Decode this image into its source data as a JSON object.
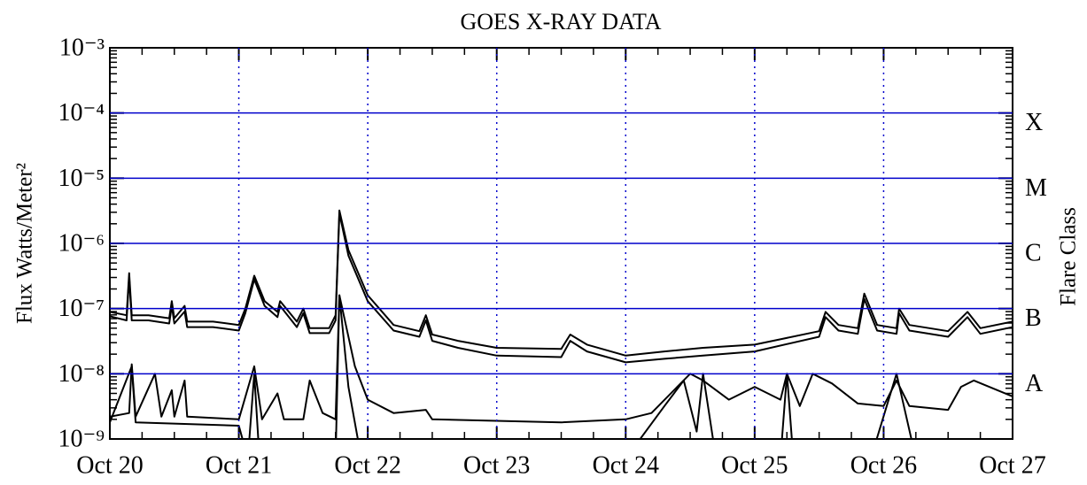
{
  "chart_data": {
    "type": "line",
    "title": "GOES X-RAY DATA",
    "ylabel": "Flux Watts/Meter²",
    "y2label": "Flare Class",
    "yscale": "log",
    "ylim": [
      1e-09,
      0.001
    ],
    "y2lim": [
      1e-09,
      0.001
    ],
    "yticks": [
      {
        "value": 1e-09,
        "label": "10⁻⁹"
      },
      {
        "value": 1e-08,
        "label": "10⁻⁸"
      },
      {
        "value": 1e-07,
        "label": "10⁻⁷"
      },
      {
        "value": 1e-06,
        "label": "10⁻⁶"
      },
      {
        "value": 1e-05,
        "label": "10⁻⁵"
      },
      {
        "value": 0.0001,
        "label": "10⁻⁴"
      },
      {
        "value": 0.001,
        "label": "10⁻³"
      }
    ],
    "y2ticks": [
      {
        "value": 1e-08,
        "label": "A"
      },
      {
        "value": 1e-07,
        "label": "B"
      },
      {
        "value": 1e-06,
        "label": "C"
      },
      {
        "value": 1e-05,
        "label": "M"
      },
      {
        "value": 0.0001,
        "label": "X"
      }
    ],
    "xlim": [
      0,
      7
    ],
    "xticks": [
      {
        "value": 0,
        "label": "Oct 20"
      },
      {
        "value": 1,
        "label": "Oct 21"
      },
      {
        "value": 2,
        "label": "Oct 22"
      },
      {
        "value": 3,
        "label": "Oct 23"
      },
      {
        "value": 4,
        "label": "Oct 24"
      },
      {
        "value": 5,
        "label": "Oct 25"
      },
      {
        "value": 6,
        "label": "Oct 26"
      },
      {
        "value": 7,
        "label": "Oct 27"
      }
    ],
    "grid": true,
    "grid_color": "#0000cc",
    "series": [
      {
        "color": "#000000",
        "x": [
          0,
          0.13,
          0.15,
          0.17,
          0.3,
          0.46,
          0.48,
          0.5,
          0.58,
          0.6,
          0.8,
          1.0,
          1.05,
          1.12,
          1.2,
          1.3,
          1.32,
          1.45,
          1.5,
          1.55,
          1.7,
          1.75,
          1.78,
          1.85,
          2.0,
          2.2,
          2.4,
          2.45,
          2.5,
          2.7,
          3.0,
          3.5,
          3.57,
          3.7,
          4.0,
          4.3,
          4.6,
          5.0,
          5.5,
          5.55,
          5.65,
          5.8,
          5.85,
          5.95,
          6.1,
          6.12,
          6.2,
          6.5,
          6.65,
          6.75,
          7.0
        ],
        "values": [
          8.9e-08,
          7.9e-08,
          3.5e-07,
          7.9e-08,
          7.9e-08,
          7.1e-08,
          1.3e-07,
          7.1e-08,
          1.1e-07,
          6.3e-08,
          6.3e-08,
          5.6e-08,
          1e-07,
          3.2e-07,
          1.3e-07,
          8.9e-08,
          1.3e-07,
          6.3e-08,
          1e-07,
          5e-08,
          5e-08,
          7.9e-08,
          3.2e-06,
          7.9e-07,
          1.6e-07,
          5.6e-08,
          4.5e-08,
          7.9e-08,
          4e-08,
          3.2e-08,
          2.5e-08,
          2.4e-08,
          4e-08,
          2.8e-08,
          1.9e-08,
          2.2e-08,
          2.5e-08,
          2.8e-08,
          4.5e-08,
          8.9e-08,
          5.6e-08,
          5e-08,
          1.7e-07,
          5.6e-08,
          5e-08,
          1e-07,
          5.6e-08,
          4.5e-08,
          8.9e-08,
          5e-08,
          6.3e-08
        ]
      },
      {
        "color": "#000000",
        "x": [
          0,
          0.13,
          0.15,
          0.17,
          0.3,
          0.46,
          0.48,
          0.5,
          0.58,
          0.6,
          0.8,
          1.0,
          1.05,
          1.12,
          1.2,
          1.3,
          1.32,
          1.45,
          1.5,
          1.55,
          1.7,
          1.75,
          1.78,
          1.85,
          2.0,
          2.2,
          2.4,
          2.45,
          2.5,
          2.7,
          3.0,
          3.5,
          3.57,
          3.7,
          4.0,
          4.3,
          4.6,
          5.0,
          5.5,
          5.55,
          5.65,
          5.8,
          5.85,
          5.95,
          6.1,
          6.12,
          6.2,
          6.5,
          6.65,
          6.75,
          7.0
        ],
        "values": [
          7.6e-08,
          6.6e-08,
          3e-07,
          6.6e-08,
          6.6e-08,
          5.9e-08,
          1.1e-07,
          5.9e-08,
          9e-08,
          5.2e-08,
          5.2e-08,
          4.6e-08,
          8.5e-08,
          2.8e-07,
          1.1e-07,
          7.4e-08,
          1.1e-07,
          5.2e-08,
          8.5e-08,
          4.2e-08,
          4.2e-08,
          6.6e-08,
          2.9e-06,
          6.5e-07,
          1.3e-07,
          4.6e-08,
          3.7e-08,
          6.6e-08,
          3.2e-08,
          2.5e-08,
          1.9e-08,
          1.8e-08,
          3.2e-08,
          2.2e-08,
          1.5e-08,
          1.7e-08,
          1.9e-08,
          2.2e-08,
          3.7e-08,
          7.4e-08,
          4.6e-08,
          4.1e-08,
          1.4e-07,
          4.6e-08,
          4.1e-08,
          8.5e-08,
          4.6e-08,
          3.7e-08,
          7.4e-08,
          4.1e-08,
          5.2e-08
        ]
      },
      {
        "color": "#000000",
        "x": [
          0,
          0.15,
          0.17,
          0.2,
          0.35,
          0.4,
          0.48,
          0.5,
          0.58,
          0.6,
          1.0,
          1.12,
          1.18,
          1.3,
          1.35,
          1.5,
          1.55,
          1.65,
          1.75,
          1.78,
          1.9,
          2.0,
          2.2,
          2.45,
          2.5,
          3.5,
          4.0,
          4.2,
          4.4,
          4.5,
          4.6,
          4.8,
          5.0,
          5.2,
          5.25,
          5.35,
          5.45,
          5.6,
          5.8,
          6.0,
          6.1,
          6.2,
          6.5,
          6.6,
          6.7,
          7.0
        ],
        "values": [
          2.2e-09,
          2.5e-09,
          1.4e-08,
          2.2e-09,
          1e-08,
          2.2e-09,
          5.6e-09,
          2.2e-09,
          7.9e-09,
          2.2e-09,
          2e-09,
          1.3e-08,
          2e-09,
          5e-09,
          2e-09,
          2e-09,
          7.9e-09,
          2.5e-09,
          2e-09,
          1.6e-07,
          1.3e-08,
          4e-09,
          2.5e-09,
          2.8e-09,
          2e-09,
          1.8e-09,
          2e-09,
          2.5e-09,
          6.3e-09,
          1e-08,
          7.9e-09,
          4e-09,
          6.3e-09,
          4e-09,
          1e-08,
          3.2e-09,
          1e-08,
          7.1e-09,
          3.5e-09,
          3.2e-09,
          7.9e-09,
          3.2e-09,
          2.8e-09,
          6.3e-09,
          7.9e-09,
          4.5e-09
        ]
      },
      {
        "color": "#000000",
        "x": [
          0,
          0.17,
          0.2,
          1.0,
          1.07,
          1.12,
          1.16,
          1.75,
          1.78,
          1.85,
          1.95,
          4.0,
          4.3,
          4.45,
          4.55,
          4.6,
          4.7,
          5.2,
          5.25,
          5.3,
          5.9,
          6.1,
          6.25,
          7.0
        ],
        "values": [
          1.8e-09,
          1.3e-08,
          1.8e-09,
          1.6e-09,
          5e-10,
          1e-08,
          5e-10,
          5e-10,
          1.6e-07,
          6.3e-09,
          5e-10,
          5e-10,
          3.2e-09,
          7.9e-09,
          1.3e-09,
          1e-08,
          5e-10,
          5e-10,
          1e-08,
          5e-10,
          5e-10,
          1e-08,
          5e-10,
          5e-10
        ]
      }
    ]
  }
}
